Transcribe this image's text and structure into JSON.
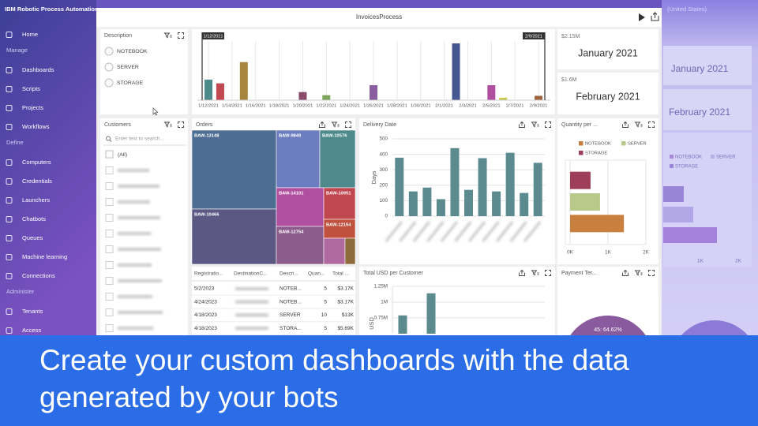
{
  "app": {
    "brand": "IBM Robotic Process Automation",
    "locale": "(United States)",
    "nav": {
      "home": "Home",
      "groups": [
        {
          "title": "Manage",
          "items": [
            "Dashboards",
            "Scripts",
            "Projects",
            "Workflows"
          ]
        },
        {
          "title": "Define",
          "items": [
            "Computers",
            "Credentials",
            "Launchers",
            "Chatbots",
            "Queues",
            "Machine learning",
            "Connections"
          ]
        },
        {
          "title": "Administer",
          "items": [
            "Tenants",
            "Access"
          ]
        }
      ]
    }
  },
  "window": {
    "title": "InvoicesProcess"
  },
  "description_filter": {
    "title": "Description",
    "options": [
      "NOTEBOOK",
      "SERVER",
      "STORAGE"
    ]
  },
  "customers": {
    "title": "Customers",
    "search_placeholder": "Enter text to search...",
    "all": "(All)"
  },
  "kpis": [
    {
      "value": "$2.15M",
      "label": "January 2021"
    },
    {
      "value": "$1.6M",
      "label": "February 2021"
    }
  ],
  "orders": {
    "title": "Orders",
    "items": [
      {
        "name": "BAW-13148",
        "color": "#4d6d93"
      },
      {
        "name": "BAW-10466",
        "color": "#5c5884"
      },
      {
        "name": "BAW-9849",
        "color": "#6d7ec0"
      },
      {
        "name": "BAW-10576",
        "color": "#4e8a8c"
      },
      {
        "name": "BAW-14101",
        "color": "#b04f9f"
      },
      {
        "name": "BAW-10951",
        "color": "#c0474f"
      },
      {
        "name": "BAW-12754",
        "color": "#8c5c8c"
      },
      {
        "name": "BAW-12154",
        "color": "#c0513e"
      },
      {
        "name": null,
        "color": "#b06a9f"
      },
      {
        "name": null,
        "color": "#8e6b3c"
      }
    ]
  },
  "table": {
    "columns": [
      "Registratio...",
      "DestinationC...",
      "Descri...",
      "Quan...",
      "Total ..."
    ],
    "rows": [
      [
        "5/2/2023",
        null,
        "NOTEB...",
        5,
        "$3.17K"
      ],
      [
        "4/24/2023",
        null,
        "NOTEB...",
        5,
        "$3.17K"
      ],
      [
        "4/18/2023",
        null,
        "SERVER",
        10,
        "$13K"
      ],
      [
        "4/18/2023",
        null,
        "STORA...",
        5,
        "$5.69K"
      ]
    ]
  },
  "ghost": {
    "kpis": [
      "January 2021",
      "February 2021"
    ],
    "legend": [
      "NOTEBOOK",
      "SERVER",
      "STORAGE"
    ],
    "ticks": [
      "1K",
      "2K"
    ]
  },
  "banner": {
    "lines": [
      "Create your custom dashboards with the data",
      "generated by your bots"
    ]
  },
  "chart_data": [
    {
      "type": "bar",
      "range_labels": [
        "1/12/2021",
        "2/9/2021"
      ],
      "categories": [
        "1/12/2021",
        null,
        "1/14/2021",
        null,
        "1/16/2021",
        null,
        "1/18/2021",
        null,
        "1/20/2021",
        null,
        "1/22/2021",
        null,
        "1/24/2021",
        null,
        "1/26/2021",
        null,
        "1/28/2021",
        null,
        "1/30/2021",
        null,
        "2/1/2021",
        null,
        "2/3/2021",
        null,
        "2/5/2021",
        null,
        "2/7/2021",
        null,
        "2/9/2021"
      ],
      "values": [
        33,
        27,
        null,
        61,
        null,
        null,
        null,
        null,
        13,
        null,
        8,
        null,
        null,
        null,
        24,
        null,
        null,
        null,
        null,
        null,
        null,
        91,
        null,
        null,
        24,
        4,
        null,
        null,
        7
      ],
      "colors": [
        "#4f8a8b",
        "#c0484e",
        null,
        "#a6863f",
        null,
        null,
        null,
        null,
        "#8a4a6a",
        null,
        "#7ea35a",
        null,
        null,
        null,
        "#8a5d9e",
        null,
        null,
        null,
        null,
        null,
        null,
        "#46568e",
        null,
        null,
        "#b04fa0",
        "#c9c94f",
        null,
        null,
        "#a0643f"
      ]
    },
    {
      "type": "bar",
      "title": "Delivery Date",
      "y_label": "Days",
      "categories": [
        null,
        null,
        null,
        null,
        null,
        null,
        null,
        null,
        null,
        null,
        null
      ],
      "values": [
        378,
        160,
        185,
        110,
        440,
        170,
        375,
        160,
        410,
        150,
        345
      ],
      "color": "#5b8a8f",
      "ylim": [
        0,
        500
      ],
      "yticks": [
        0,
        100,
        200,
        300,
        400,
        500
      ],
      "grid": true
    },
    {
      "type": "hbar",
      "title": "Quantity per ...",
      "categories": [
        "STORAGE",
        "SERVER",
        "NOTEBOOK"
      ],
      "values": [
        540,
        790,
        1420
      ],
      "colors": [
        "#9e3e5a",
        "#b9c98a",
        "#c9803f"
      ],
      "xlim": [
        0,
        2000
      ],
      "xticks": [
        {
          "value": 0,
          "label": "0K"
        },
        {
          "value": 1000,
          "label": "1K"
        },
        {
          "value": 2000,
          "label": "2K"
        }
      ],
      "grid": true
    },
    {
      "type": "bar",
      "title": "Total USD per Customer",
      "y_label": "USD",
      "categories": [
        null,
        null
      ],
      "values": [
        790000,
        1140000
      ],
      "color": "#5b8a8f",
      "ylim": [
        500000,
        1250000
      ],
      "yticks": [
        {
          "value": 750000,
          "label": "0.75M"
        },
        {
          "value": 1000000,
          "label": "1M"
        },
        {
          "value": 1250000,
          "label": "1.25M"
        }
      ],
      "grid": true
    },
    {
      "type": "pie",
      "title": "Payment Ter...",
      "categories": [
        "45"
      ],
      "values": [
        64.62
      ],
      "value_labels": [
        "45: 64.62%"
      ],
      "color": "#8a5a9e"
    }
  ]
}
